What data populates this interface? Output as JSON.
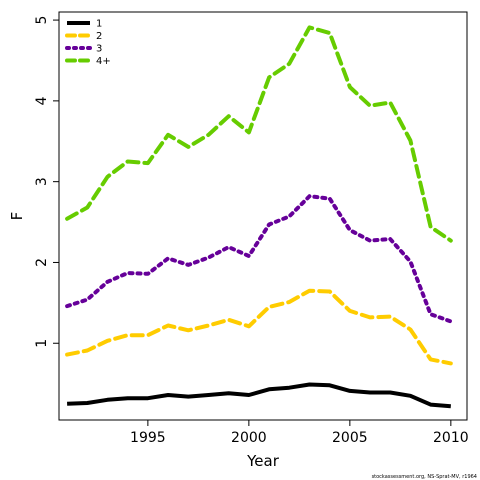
{
  "chart_data": {
    "type": "line",
    "xlabel": "Year",
    "ylabel": "F",
    "xlim": [
      1990.6,
      2010.8
    ],
    "ylim": [
      0.05,
      5.1
    ],
    "x_ticks": [
      1995,
      2000,
      2005,
      2010
    ],
    "y_ticks": [
      1,
      2,
      3,
      4,
      5
    ],
    "grid": false,
    "legend_position": "top-left",
    "x": [
      1991,
      1992,
      1993,
      1994,
      1995,
      1996,
      1997,
      1998,
      1999,
      2000,
      2001,
      2002,
      2003,
      2004,
      2005,
      2006,
      2007,
      2008,
      2009,
      2010
    ],
    "series": [
      {
        "name": "1",
        "color": "#000000",
        "dash": "solid",
        "values": [
          0.25,
          0.26,
          0.3,
          0.32,
          0.32,
          0.36,
          0.34,
          0.36,
          0.38,
          0.36,
          0.43,
          0.45,
          0.49,
          0.48,
          0.41,
          0.39,
          0.39,
          0.35,
          0.24,
          0.22
        ]
      },
      {
        "name": "2",
        "color": "#ffcc00",
        "dash": "dashed",
        "values": [
          0.86,
          0.91,
          1.03,
          1.1,
          1.1,
          1.22,
          1.16,
          1.22,
          1.29,
          1.21,
          1.45,
          1.51,
          1.65,
          1.64,
          1.4,
          1.32,
          1.33,
          1.17,
          0.8,
          0.75
        ]
      },
      {
        "name": "3",
        "color": "#660099",
        "dash": "dotted",
        "values": [
          1.46,
          1.54,
          1.76,
          1.87,
          1.86,
          2.05,
          1.97,
          2.06,
          2.19,
          2.08,
          2.47,
          2.57,
          2.82,
          2.79,
          2.4,
          2.27,
          2.29,
          2.01,
          1.36,
          1.27
        ]
      },
      {
        "name": "4+",
        "color": "#66cc00",
        "dash": "dashed",
        "values": [
          2.54,
          2.68,
          3.06,
          3.25,
          3.23,
          3.58,
          3.43,
          3.58,
          3.81,
          3.61,
          4.29,
          4.46,
          4.91,
          4.84,
          4.17,
          3.94,
          3.98,
          3.51,
          2.44,
          2.27
        ]
      }
    ]
  },
  "footnote": "stockassessment.org, NS-Sprat-MV, r1964"
}
